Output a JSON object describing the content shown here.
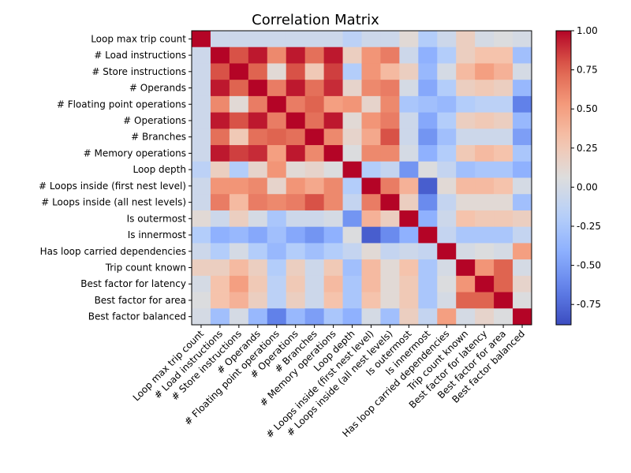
{
  "chart_data": {
    "type": "heatmap",
    "title": "Correlation Matrix",
    "labels": [
      "Loop max trip count",
      "# Load instructions",
      "# Store instructions",
      "# Operands",
      "# Floating point operations",
      "# Operations",
      "# Branches",
      "# Memory operations",
      "Loop depth",
      "# Loops inside (first nest level)",
      "# Loops inside (all nest levels)",
      "Is outermost",
      "Is innermost",
      "Has loop carried dependencies",
      "Trip count known",
      "Best factor for latency",
      "Best factor for area",
      "Best factor balanced"
    ],
    "matrix": [
      [
        1.0,
        -0.05,
        -0.05,
        -0.05,
        -0.05,
        -0.05,
        -0.05,
        -0.05,
        -0.15,
        -0.05,
        -0.05,
        0.1,
        -0.2,
        -0.05,
        0.2,
        0.0,
        0.05,
        0.0
      ],
      [
        -0.05,
        1.0,
        0.8,
        0.95,
        0.6,
        0.95,
        0.7,
        0.95,
        0.2,
        0.55,
        0.65,
        -0.05,
        -0.4,
        -0.2,
        0.2,
        0.3,
        0.3,
        -0.3
      ],
      [
        -0.05,
        0.8,
        1.0,
        0.75,
        0.1,
        0.8,
        0.25,
        0.85,
        -0.2,
        0.55,
        0.35,
        0.2,
        -0.35,
        0.0,
        0.35,
        0.5,
        0.4,
        0.0
      ],
      [
        -0.05,
        0.95,
        0.75,
        1.0,
        0.65,
        0.95,
        0.7,
        0.9,
        0.15,
        0.6,
        0.65,
        0.0,
        -0.45,
        -0.2,
        0.2,
        0.25,
        0.2,
        -0.35
      ],
      [
        -0.05,
        0.6,
        0.1,
        0.65,
        1.0,
        0.65,
        0.75,
        0.5,
        0.55,
        0.15,
        0.6,
        -0.25,
        -0.3,
        -0.35,
        -0.2,
        -0.15,
        -0.15,
        -0.65
      ],
      [
        -0.05,
        0.95,
        0.8,
        0.95,
        0.65,
        1.0,
        0.7,
        0.95,
        0.1,
        0.55,
        0.65,
        -0.05,
        -0.45,
        -0.2,
        0.2,
        0.25,
        0.2,
        -0.35
      ],
      [
        -0.05,
        0.7,
        0.25,
        0.7,
        0.75,
        0.7,
        1.0,
        0.6,
        0.15,
        0.45,
        0.8,
        -0.05,
        -0.55,
        -0.3,
        -0.05,
        -0.05,
        -0.05,
        -0.5
      ],
      [
        -0.05,
        0.95,
        0.85,
        0.9,
        0.5,
        0.95,
        0.6,
        1.0,
        0.05,
        0.6,
        0.6,
        0.0,
        -0.4,
        -0.2,
        0.25,
        0.35,
        0.3,
        -0.25
      ],
      [
        -0.15,
        0.2,
        -0.2,
        0.15,
        0.55,
        0.1,
        0.15,
        0.05,
        1.0,
        -0.2,
        -0.1,
        -0.55,
        0.05,
        -0.1,
        -0.3,
        -0.25,
        -0.25,
        -0.4
      ],
      [
        -0.05,
        0.55,
        0.55,
        0.6,
        0.15,
        0.55,
        0.45,
        0.6,
        -0.2,
        1.0,
        0.65,
        0.4,
        -0.8,
        0.1,
        0.35,
        0.35,
        0.3,
        0.0
      ],
      [
        -0.05,
        0.65,
        0.35,
        0.65,
        0.6,
        0.65,
        0.8,
        0.6,
        -0.1,
        0.65,
        1.0,
        0.2,
        -0.6,
        -0.1,
        0.1,
        0.1,
        0.1,
        -0.3
      ],
      [
        0.1,
        -0.05,
        0.2,
        0.0,
        -0.25,
        -0.05,
        -0.05,
        0.0,
        -0.55,
        0.4,
        0.2,
        1.0,
        -0.4,
        -0.05,
        0.3,
        0.25,
        0.25,
        0.2
      ],
      [
        -0.2,
        -0.4,
        -0.35,
        -0.45,
        -0.3,
        -0.45,
        -0.55,
        -0.4,
        0.05,
        -0.8,
        -0.6,
        -0.4,
        1.0,
        -0.1,
        -0.25,
        -0.25,
        -0.25,
        -0.1
      ],
      [
        -0.05,
        -0.2,
        0.0,
        -0.2,
        -0.35,
        -0.2,
        -0.3,
        -0.2,
        -0.1,
        0.1,
        -0.1,
        -0.05,
        -0.1,
        1.0,
        0.0,
        0.05,
        0.0,
        0.5
      ],
      [
        0.2,
        0.2,
        0.35,
        0.2,
        -0.2,
        0.2,
        -0.05,
        0.25,
        -0.3,
        0.35,
        0.1,
        0.3,
        -0.25,
        0.0,
        1.0,
        0.55,
        0.75,
        0.0
      ],
      [
        0.0,
        0.3,
        0.5,
        0.25,
        -0.15,
        0.25,
        -0.05,
        0.35,
        -0.25,
        0.35,
        0.1,
        0.25,
        -0.25,
        0.05,
        0.55,
        1.0,
        0.75,
        0.15
      ],
      [
        0.05,
        0.3,
        0.4,
        0.2,
        -0.15,
        0.2,
        -0.05,
        0.3,
        -0.25,
        0.3,
        0.1,
        0.25,
        -0.25,
        0.0,
        0.75,
        0.75,
        1.0,
        0.05
      ],
      [
        0.0,
        -0.3,
        0.0,
        -0.35,
        -0.65,
        -0.35,
        -0.5,
        -0.25,
        -0.4,
        0.0,
        -0.3,
        0.2,
        -0.1,
        0.5,
        0.0,
        0.15,
        0.05,
        1.0
      ]
    ],
    "colorbar": {
      "min": -0.88,
      "max": 1.0,
      "ticks": [
        "1.00",
        "0.75",
        "0.50",
        "0.25",
        "0.00",
        "-0.25",
        "-0.50",
        "-0.75"
      ],
      "colormap": "coolwarm"
    }
  }
}
